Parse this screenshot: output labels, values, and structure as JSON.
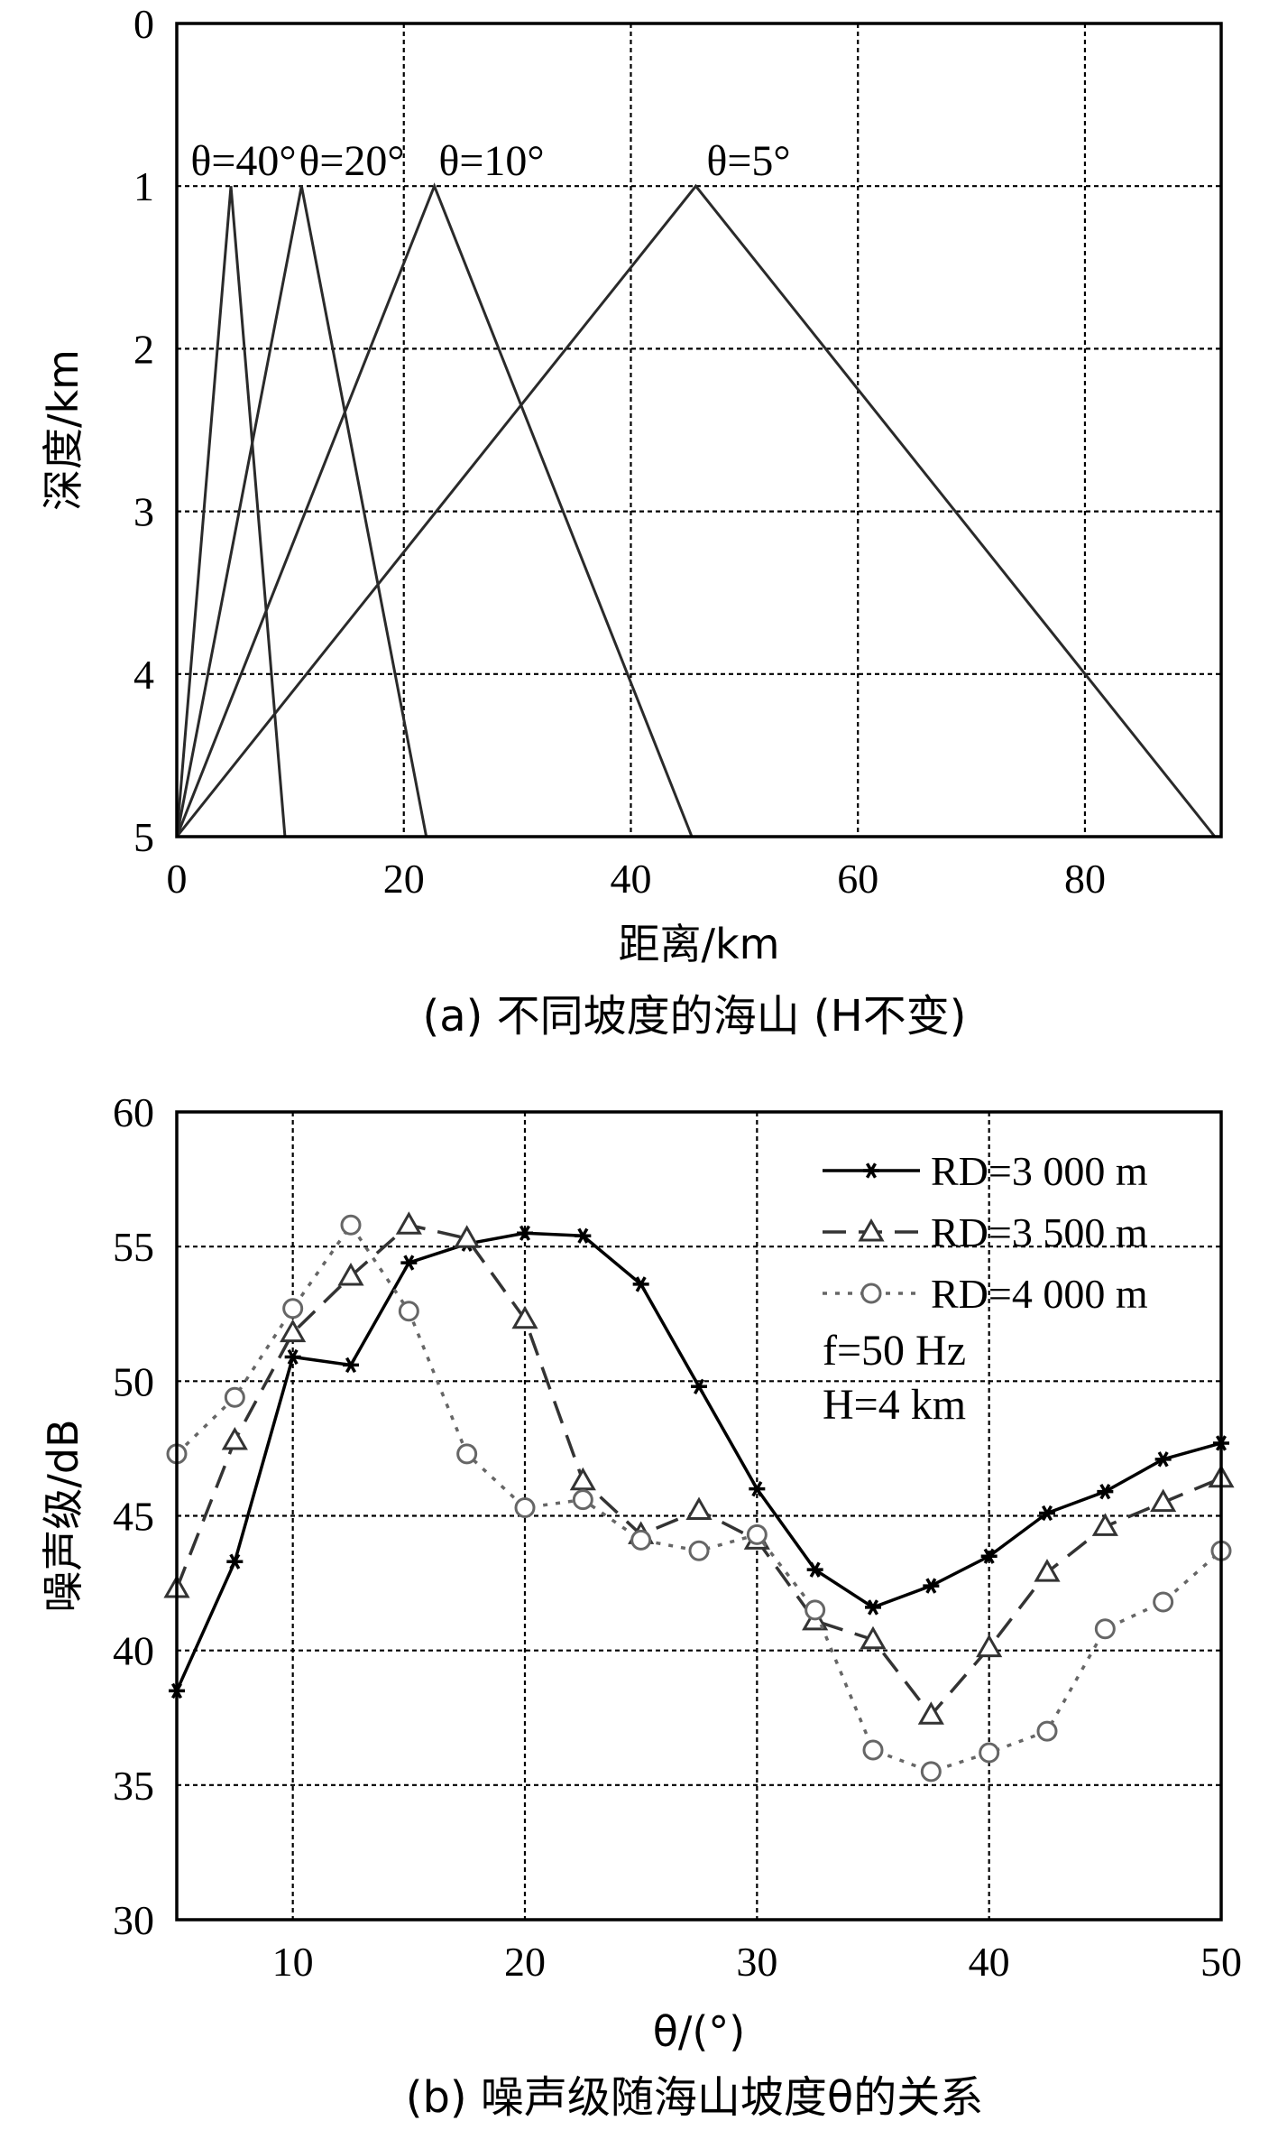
{
  "chart_data": [
    {
      "panel": "a",
      "type": "line",
      "caption": "(a) 不同坡度的海山 (H不变)",
      "xlabel": "距离/km",
      "ylabel": "深度/km",
      "xlim": [
        0,
        92
      ],
      "ylim": [
        0,
        5
      ],
      "y_inverted": true,
      "xticks": [
        0,
        20,
        40,
        60,
        80
      ],
      "yticks": [
        0,
        1,
        2,
        3,
        4,
        5
      ],
      "grid": true,
      "series": [
        {
          "name": "θ=40°",
          "label": "θ=40°",
          "x": [
            0,
            4.77,
            9.53
          ],
          "y": [
            5,
            1,
            5
          ]
        },
        {
          "name": "θ=20°",
          "label": "θ=20°",
          "x": [
            0,
            10.99,
            21.98
          ],
          "y": [
            5,
            1,
            5
          ]
        },
        {
          "name": "θ=10°",
          "label": "θ=10°",
          "x": [
            0,
            22.69,
            45.37
          ],
          "y": [
            5,
            1,
            5
          ]
        },
        {
          "name": "θ=5°",
          "label": "θ=5°",
          "x": [
            0,
            45.72,
            91.44
          ],
          "y": [
            5,
            1,
            5
          ]
        }
      ]
    },
    {
      "panel": "b",
      "type": "line",
      "caption": "(b) 噪声级随海山坡度θ的关系",
      "xlabel": "θ/(°)",
      "ylabel": "噪声级/dB",
      "xlim": [
        5,
        50
      ],
      "ylim": [
        30,
        60
      ],
      "xticks": [
        10,
        20,
        30,
        40,
        50
      ],
      "yticks": [
        30,
        35,
        40,
        45,
        50,
        55,
        60
      ],
      "grid": true,
      "legend_position": "top-right",
      "annotations": [
        "f=50 Hz",
        "H=4 km"
      ],
      "x": [
        5,
        7.5,
        10,
        12.5,
        15,
        17.5,
        20,
        22.5,
        25,
        27.5,
        30,
        32.5,
        35,
        37.5,
        40,
        42.5,
        45,
        47.5,
        50
      ],
      "series": [
        {
          "name": "RD=3 000 m",
          "marker": "star",
          "line": "solid",
          "color": "#000000",
          "values": [
            38.5,
            43.3,
            50.9,
            50.6,
            54.4,
            55.1,
            55.5,
            55.4,
            53.6,
            49.8,
            46.0,
            43.0,
            41.6,
            42.4,
            43.5,
            45.1,
            45.9,
            47.1,
            47.7
          ]
        },
        {
          "name": "RD=3 500 m",
          "marker": "triangle",
          "line": "dashed",
          "color": "#333333",
          "values": [
            42.3,
            47.8,
            51.8,
            53.9,
            55.8,
            55.3,
            52.3,
            46.3,
            44.3,
            45.2,
            44.1,
            41.1,
            40.4,
            37.6,
            40.1,
            42.9,
            44.6,
            45.5,
            46.4
          ]
        },
        {
          "name": "RD=4 000 m",
          "marker": "circle",
          "line": "dotted",
          "color": "#666666",
          "values": [
            47.3,
            49.4,
            52.7,
            55.8,
            52.6,
            47.3,
            45.3,
            45.6,
            44.1,
            43.7,
            44.3,
            41.5,
            36.3,
            35.5,
            36.2,
            37.0,
            40.8,
            41.8,
            43.7
          ]
        }
      ]
    }
  ]
}
